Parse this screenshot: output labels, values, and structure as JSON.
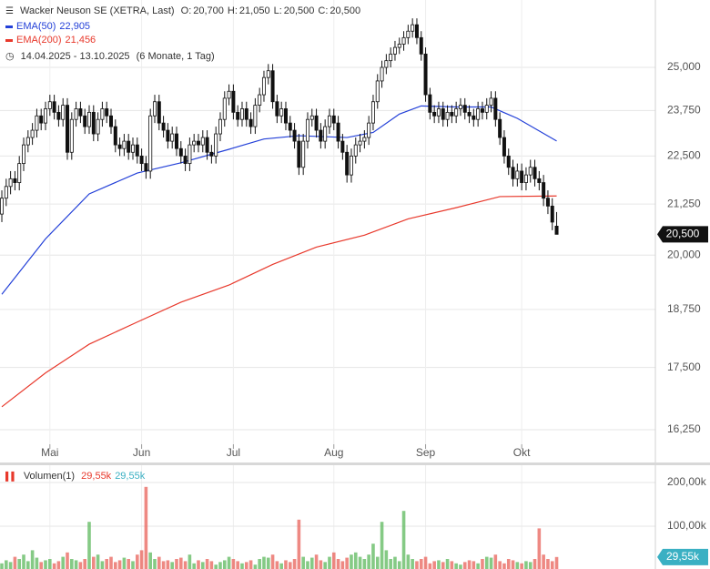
{
  "chart_data": {
    "type": "candlestick",
    "title": "Wacker Neuson SE (XETRA, Last)",
    "header_values": [
      {
        "key": "O:",
        "value": 20700,
        "label": "20,700"
      },
      {
        "key": "H:",
        "value": 21050,
        "label": "21,050"
      },
      {
        "key": "L:",
        "value": 20500,
        "label": "20,500"
      },
      {
        "key": "C:",
        "value": 20500,
        "label": "20,500"
      }
    ],
    "date_range": "14.04.2025 - 13.10.2025",
    "period": "(6 Monate, 1 Tag)",
    "log_scale": true,
    "grid": true,
    "ylim": [
      15630,
      27085
    ],
    "xlim": [
      -0.42,
      149.6
    ],
    "yticks": [
      {
        "value": 16250,
        "label": "16,250"
      },
      {
        "value": 17500,
        "label": "17,500"
      },
      {
        "value": 18750,
        "label": "18,750"
      },
      {
        "value": 20000,
        "label": "20,000"
      },
      {
        "value": 21250,
        "label": "21,250"
      },
      {
        "value": 22500,
        "label": "22,500"
      },
      {
        "value": 23750,
        "label": "23,750"
      },
      {
        "value": 25000,
        "label": "25,000"
      }
    ],
    "xticks": [
      {
        "value": 11,
        "label": "Mai"
      },
      {
        "value": 32,
        "label": "Jun"
      },
      {
        "value": 53,
        "label": "Jul"
      },
      {
        "value": 76,
        "label": "Aug"
      },
      {
        "value": 97,
        "label": "Sep"
      },
      {
        "value": 119,
        "label": "Okt"
      }
    ],
    "last_tag": {
      "value": 20500,
      "label": "20,500"
    },
    "up_color": "#ffffff",
    "down_color": "#111111",
    "open": [
      21000,
      21400,
      21700,
      21900,
      21800,
      22300,
      22800,
      23000,
      23200,
      23600,
      23400,
      23800,
      24000,
      23700,
      23500,
      23900,
      22600,
      23500,
      23800,
      23600,
      23300,
      23700,
      23100,
      23500,
      23800,
      23600,
      23300,
      22800,
      22700,
      22900,
      22600,
      22800,
      22500,
      22300,
      22100,
      23600,
      24000,
      23400,
      23200,
      22900,
      23100,
      22700,
      22500,
      22300,
      22800,
      22900,
      22800,
      23000,
      22600,
      22500,
      23100,
      23500,
      24100,
      24300,
      23700,
      23500,
      23800,
      23500,
      23300,
      23900,
      24200,
      24700,
      24900,
      24000,
      23600,
      23800,
      23400,
      23200,
      22900,
      22200,
      22900,
      23500,
      23600,
      23200,
      22900,
      23300,
      23600,
      23400,
      22900,
      22600,
      22000,
      22500,
      22800,
      22900,
      23000,
      23400,
      24000,
      24600,
      25000,
      25200,
      25400,
      25600,
      25700,
      25900,
      26100,
      26300,
      25900,
      25400,
      24200,
      23700,
      23600,
      23800,
      23500,
      23700,
      23600,
      23800,
      23900,
      23700,
      23600,
      23500,
      23800,
      23700,
      23900,
      24100,
      23500,
      23000,
      22500,
      22200,
      21900,
      22100,
      21800,
      22000,
      22200,
      21900,
      21800,
      21400,
      21200,
      20700
    ],
    "high": [
      21600,
      21900,
      22100,
      22100,
      22500,
      23000,
      23200,
      23400,
      23800,
      23800,
      24000,
      24200,
      24200,
      23900,
      24100,
      24100,
      23700,
      24000,
      24000,
      23800,
      23900,
      23900,
      23700,
      24000,
      24000,
      23800,
      23500,
      23000,
      23100,
      23100,
      23000,
      23000,
      22700,
      22500,
      23800,
      24200,
      24200,
      23600,
      23400,
      23300,
      23300,
      22900,
      22700,
      23000,
      23100,
      23100,
      23200,
      23200,
      22800,
      23300,
      23700,
      24300,
      24500,
      24500,
      23900,
      24000,
      24000,
      23700,
      24100,
      24400,
      24900,
      25100,
      25100,
      24200,
      24000,
      24000,
      23600,
      23400,
      23100,
      23100,
      23700,
      23800,
      23800,
      23400,
      23500,
      23800,
      23800,
      23600,
      23100,
      22800,
      22700,
      23000,
      23100,
      23200,
      23600,
      24200,
      24800,
      25200,
      25400,
      25600,
      25800,
      25900,
      26100,
      26300,
      26500,
      26500,
      26100,
      25600,
      24400,
      23900,
      24000,
      24000,
      23900,
      23900,
      24000,
      24100,
      24100,
      23900,
      23800,
      24000,
      24000,
      24100,
      24300,
      24300,
      23700,
      23200,
      22700,
      22400,
      22300,
      22300,
      22200,
      22400,
      22400,
      22100,
      22000,
      21600,
      21400,
      21050
    ],
    "low": [
      20800,
      21200,
      21500,
      21600,
      21600,
      22100,
      22600,
      22800,
      23000,
      23200,
      23200,
      23600,
      23500,
      23300,
      23300,
      22400,
      22400,
      23300,
      23400,
      23100,
      23100,
      22900,
      22900,
      23300,
      23400,
      23100,
      22600,
      22500,
      22500,
      22400,
      22400,
      22300,
      22100,
      21900,
      21900,
      23400,
      23200,
      23000,
      22700,
      22700,
      22500,
      22300,
      22100,
      22100,
      22600,
      22600,
      22600,
      22400,
      22300,
      22300,
      22900,
      23300,
      23900,
      23500,
      23300,
      23300,
      23300,
      23100,
      23100,
      23700,
      24000,
      24500,
      23800,
      23400,
      23400,
      23200,
      23000,
      22700,
      22000,
      22000,
      22700,
      23300,
      23000,
      22700,
      22700,
      23100,
      23200,
      22700,
      22400,
      21800,
      21800,
      22300,
      22600,
      22700,
      22800,
      23200,
      23800,
      24400,
      24800,
      25000,
      25200,
      25400,
      25500,
      25700,
      25900,
      25700,
      25200,
      24000,
      23500,
      23400,
      23400,
      23300,
      23300,
      23400,
      23400,
      23600,
      23500,
      23400,
      23300,
      23300,
      23500,
      23500,
      23700,
      23300,
      22800,
      22300,
      22000,
      21700,
      21700,
      21600,
      21600,
      21800,
      21700,
      21600,
      21200,
      21000,
      20600,
      20500
    ],
    "close": [
      21400,
      21700,
      21900,
      21800,
      22300,
      22800,
      23000,
      23200,
      23600,
      23400,
      23800,
      24000,
      23700,
      23500,
      23900,
      22600,
      23500,
      23800,
      23600,
      23300,
      23700,
      23100,
      23500,
      23800,
      23600,
      23300,
      22800,
      22700,
      22900,
      22600,
      22800,
      22500,
      22300,
      22100,
      23600,
      24000,
      23400,
      23200,
      22900,
      23100,
      22700,
      22500,
      22300,
      22800,
      22900,
      22800,
      23000,
      22600,
      22500,
      23100,
      23500,
      24100,
      24300,
      23700,
      23500,
      23800,
      23500,
      23300,
      23900,
      24200,
      24700,
      24900,
      24000,
      23600,
      23800,
      23400,
      23200,
      22900,
      22200,
      22900,
      23500,
      23600,
      23200,
      22900,
      23300,
      23600,
      23400,
      22900,
      22600,
      22000,
      22500,
      22800,
      22900,
      23000,
      23400,
      24000,
      24600,
      25000,
      25200,
      25400,
      25600,
      25700,
      25900,
      26100,
      26300,
      25900,
      25400,
      24200,
      23700,
      23600,
      23800,
      23500,
      23700,
      23600,
      23800,
      23900,
      23700,
      23600,
      23500,
      23800,
      23700,
      23900,
      24100,
      23500,
      23000,
      22500,
      22200,
      21900,
      22100,
      21800,
      22000,
      22200,
      21900,
      21800,
      21400,
      21200,
      20800,
      20500
    ],
    "series": [
      {
        "name": "EMA(50)",
        "color": "#2340d8",
        "value": 22905,
        "value_label": "22,905",
        "x": [
          0,
          10,
          20,
          31,
          41,
          52,
          60,
          68,
          79,
          85,
          91,
          96,
          104,
          112,
          118,
          127
        ],
        "values": [
          19090,
          20390,
          21510,
          22050,
          22320,
          22680,
          22960,
          23050,
          23000,
          23140,
          23650,
          23880,
          23850,
          23850,
          23530,
          22905
        ]
      },
      {
        "name": "EMA(200)",
        "color": "#e8392c",
        "value": 21456,
        "value_label": "21,456",
        "x": [
          0,
          10,
          20,
          31,
          41,
          52,
          62,
          72,
          83,
          93,
          104,
          114,
          127
        ],
        "values": [
          16700,
          17385,
          17990,
          18470,
          18910,
          19300,
          19780,
          20190,
          20480,
          20880,
          21160,
          21440,
          21456
        ]
      }
    ],
    "volume": {
      "name": "Volumen(1)",
      "ylim": [
        0,
        241.7
      ],
      "yticks": [
        {
          "value": 100,
          "label": "100,00k"
        },
        {
          "value": 200,
          "label": "200,00k"
        }
      ],
      "up_color": "#5cb85c",
      "down_color": "#e8625a",
      "tag_color": "#3ab0c3",
      "legend_values": [
        {
          "value": 29.55,
          "label": "29,55k",
          "color": "#e8392c"
        },
        {
          "value": 29.55,
          "label": "29,55k",
          "color": "#3ab0c3"
        }
      ],
      "tag": {
        "value": 29.55,
        "label": "29,55k"
      },
      "values": [
        15,
        22,
        18,
        30,
        25,
        35,
        20,
        45,
        28,
        18,
        22,
        25,
        15,
        20,
        30,
        40,
        25,
        22,
        18,
        25,
        110,
        30,
        35,
        20,
        25,
        30,
        18,
        22,
        28,
        25,
        20,
        35,
        45,
        190,
        40,
        25,
        30,
        20,
        22,
        18,
        25,
        28,
        20,
        35,
        15,
        22,
        18,
        25,
        20,
        12,
        18,
        22,
        30,
        25,
        20,
        15,
        18,
        22,
        12,
        25,
        30,
        28,
        35,
        20,
        15,
        22,
        18,
        25,
        115,
        30,
        20,
        28,
        35,
        22,
        18,
        30,
        40,
        25,
        20,
        28,
        35,
        40,
        30,
        25,
        35,
        60,
        30,
        110,
        45,
        25,
        30,
        20,
        135,
        35,
        25,
        20,
        25,
        30,
        15,
        20,
        22,
        18,
        25,
        20,
        15,
        12,
        18,
        22,
        20,
        15,
        25,
        30,
        28,
        35,
        20,
        15,
        25,
        22,
        18,
        15,
        20,
        18,
        25,
        95,
        35,
        25,
        20,
        29.55
      ]
    }
  }
}
